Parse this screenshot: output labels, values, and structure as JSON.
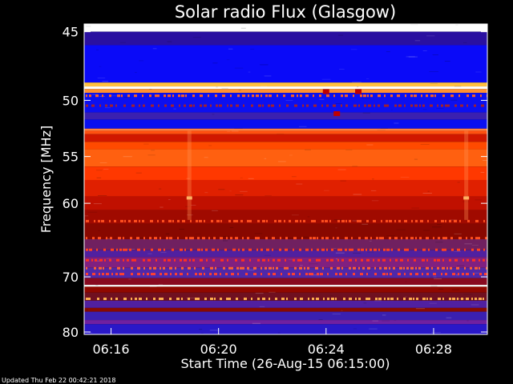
{
  "footer": {
    "updated_label": "Updated Thu Feb 22 00:42:21 2018"
  },
  "chart_data": {
    "type": "heatmap",
    "title": "Solar radio Flux (Glasgow)",
    "xlabel": "Start Time (26-Aug-15 06:15:00)",
    "ylabel": "Frequency [MHz]",
    "x_ticks": [
      {
        "label": "06:16",
        "minutes": 16
      },
      {
        "label": "06:20",
        "minutes": 20
      },
      {
        "label": "06:24",
        "minutes": 24
      },
      {
        "label": "06:28",
        "minutes": 28
      }
    ],
    "x_range_minutes": [
      15.0,
      30.0
    ],
    "y_ticks": [
      45,
      50,
      55,
      60,
      70,
      80
    ],
    "y_range_mhz": [
      44.5,
      80.5
    ],
    "y_scale": "reciprocal",
    "y_direction": "increasing-downward",
    "colormap": [
      "#0000ff",
      "#4a2aa0",
      "#a00000",
      "#d81000",
      "#ff5a00",
      "#ffd070",
      "#ffffff"
    ],
    "bands_mhz": [
      {
        "from": 44.5,
        "to": 45.0,
        "color": "#ffffff"
      },
      {
        "from": 45.0,
        "to": 45.9,
        "color": "#2a10a0"
      },
      {
        "from": 45.9,
        "to": 48.6,
        "color": "#0a0af8"
      },
      {
        "from": 48.6,
        "to": 48.9,
        "color": "#ffc040"
      },
      {
        "from": 48.9,
        "to": 49.1,
        "color": "#ffffff"
      },
      {
        "from": 49.1,
        "to": 49.4,
        "color": "#ff9030"
      },
      {
        "from": 49.4,
        "to": 51.0,
        "color": "#0c10f0"
      },
      {
        "from": 51.0,
        "to": 51.6,
        "color": "#3a20b0"
      },
      {
        "from": 51.6,
        "to": 52.4,
        "color": "#0a10f0"
      },
      {
        "from": 52.4,
        "to": 52.6,
        "color": "#ff8040"
      },
      {
        "from": 52.6,
        "to": 52.9,
        "color": "#ff5010"
      },
      {
        "from": 52.9,
        "to": 53.6,
        "color": "#d01800"
      },
      {
        "from": 53.6,
        "to": 54.3,
        "color": "#ff4a00"
      },
      {
        "from": 54.3,
        "to": 56.0,
        "color": "#ff6010"
      },
      {
        "from": 56.0,
        "to": 57.4,
        "color": "#ff3800"
      },
      {
        "from": 57.4,
        "to": 59.2,
        "color": "#e02000"
      },
      {
        "from": 59.2,
        "to": 60.8,
        "color": "#c01000"
      },
      {
        "from": 60.8,
        "to": 62.5,
        "color": "#a00a00"
      },
      {
        "from": 62.5,
        "to": 64.5,
        "color": "#880800"
      },
      {
        "from": 64.5,
        "to": 66.0,
        "color": "#702060"
      },
      {
        "from": 66.0,
        "to": 67.0,
        "color": "#5020a0"
      },
      {
        "from": 67.0,
        "to": 68.6,
        "color": "#802080"
      },
      {
        "from": 68.6,
        "to": 70.2,
        "color": "#5028a8"
      },
      {
        "from": 70.2,
        "to": 71.3,
        "color": "#880a20"
      },
      {
        "from": 71.3,
        "to": 71.6,
        "color": "#ffffff"
      },
      {
        "from": 71.6,
        "to": 72.6,
        "color": "#900800"
      },
      {
        "from": 72.6,
        "to": 74.0,
        "color": "#701020"
      },
      {
        "from": 74.0,
        "to": 75.3,
        "color": "#5020a0"
      },
      {
        "from": 75.3,
        "to": 76.0,
        "color": "#880a00"
      },
      {
        "from": 76.0,
        "to": 77.6,
        "color": "#3a20b0"
      },
      {
        "from": 77.6,
        "to": 78.4,
        "color": "#7020a0"
      },
      {
        "from": 78.4,
        "to": 80.5,
        "color": "#2a18c8"
      }
    ],
    "interference_rows_mhz": [
      {
        "mhz": 49.6,
        "color": "#ff6020"
      },
      {
        "mhz": 50.4,
        "color": "#a02030"
      },
      {
        "mhz": 62.1,
        "color": "#ff5020"
      },
      {
        "mhz": 64.3,
        "color": "#ff5020"
      },
      {
        "mhz": 65.9,
        "color": "#ff4020"
      },
      {
        "mhz": 67.4,
        "color": "#ff3020"
      },
      {
        "mhz": 68.6,
        "color": "#ff6030"
      },
      {
        "mhz": 69.5,
        "color": "#ff4030"
      },
      {
        "mhz": 73.6,
        "color": "#ffb050"
      }
    ],
    "bright_columns_minutes": [
      18.9,
      29.2
    ]
  }
}
